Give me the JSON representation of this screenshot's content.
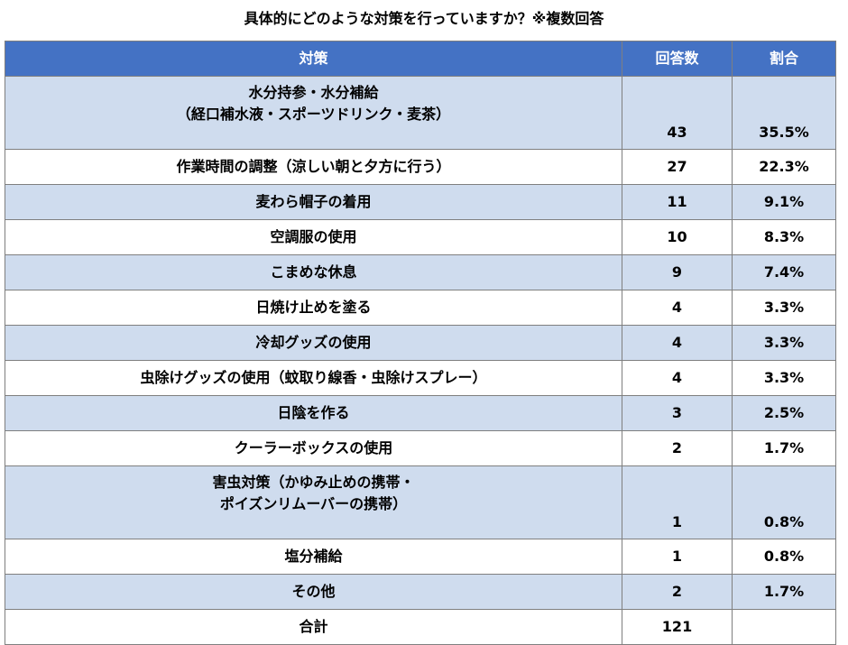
{
  "title": "具体的にどのような対策を行っていますか？※複数回答",
  "colors": {
    "header_bg": "#4472c4",
    "stripe": "#cfdcee",
    "border": "#7f7f7f"
  },
  "chart_data": {
    "type": "table",
    "columns": [
      "対策",
      "回答数",
      "割合"
    ],
    "rows": [
      {
        "label": [
          "水分持参・水分補給",
          "（経口補水液・スポーツドリンク・麦茶）"
        ],
        "count": "43",
        "ratio": "35.5%"
      },
      {
        "label": [
          "作業時間の調整（涼しい朝と夕方に行う）"
        ],
        "count": "27",
        "ratio": "22.3%"
      },
      {
        "label": [
          "麦わら帽子の着用"
        ],
        "count": "11",
        "ratio": "9.1%"
      },
      {
        "label": [
          "空調服の使用"
        ],
        "count": "10",
        "ratio": "8.3%"
      },
      {
        "label": [
          "こまめな休息"
        ],
        "count": "9",
        "ratio": "7.4%"
      },
      {
        "label": [
          "日焼け止めを塗る"
        ],
        "count": "4",
        "ratio": "3.3%"
      },
      {
        "label": [
          "冷却グッズの使用"
        ],
        "count": "4",
        "ratio": "3.3%"
      },
      {
        "label": [
          "虫除けグッズの使用（蚊取り線香・虫除けスプレー）"
        ],
        "count": "4",
        "ratio": "3.3%"
      },
      {
        "label": [
          "日陰を作る"
        ],
        "count": "3",
        "ratio": "2.5%"
      },
      {
        "label": [
          "クーラーボックスの使用"
        ],
        "count": "2",
        "ratio": "1.7%"
      },
      {
        "label": [
          "害虫対策（かゆみ止めの携帯・",
          "ポイズンリムーバーの携帯）"
        ],
        "count": "1",
        "ratio": "0.8%"
      },
      {
        "label": [
          "塩分補給"
        ],
        "count": "1",
        "ratio": "0.8%"
      },
      {
        "label": [
          "その他"
        ],
        "count": "2",
        "ratio": "1.7%"
      }
    ],
    "total": {
      "label": "合計",
      "count": "121",
      "ratio": ""
    }
  }
}
